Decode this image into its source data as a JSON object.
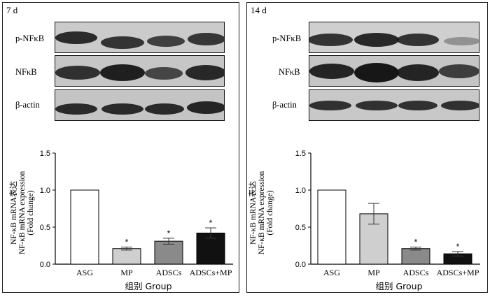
{
  "panels": [
    {
      "day": "7 d",
      "blot_labels": [
        "p-NFκB",
        "NFκB",
        "β-actin"
      ],
      "chart_ylabel": [
        "NF-κB mRNA表达",
        "NF-κB mRNA expression",
        "(Fold change)"
      ],
      "chart_xlabel": "组别  Group"
    },
    {
      "day": "14 d",
      "blot_labels": [
        "p-NFκB",
        "NFκB",
        "β-actin"
      ],
      "chart_ylabel": [
        "NF-κB mRNA表达",
        "NF-κB mRNA expression",
        "(Fold change)"
      ],
      "chart_xlabel": "组别  Group"
    }
  ],
  "chart_data": [
    {
      "type": "bar",
      "categories": [
        "ASG",
        "MP",
        "ADSCs",
        "ADSCs+MP"
      ],
      "values": [
        1.0,
        0.21,
        0.31,
        0.42
      ],
      "errors": [
        0,
        0.02,
        0.04,
        0.07
      ],
      "significance": [
        "",
        "*",
        "*",
        "*"
      ],
      "bar_colors": [
        "#ffffff",
        "#cfcfcf",
        "#8a8a8a",
        "#111111"
      ],
      "xlabel": "组别  Group",
      "ylabel": "NF-κB mRNA表达 NF-κB mRNA expression (Fold change)",
      "ylim": [
        0,
        1.5
      ],
      "yticks": [
        "0.0",
        "0.5",
        "1.0",
        "1.5"
      ]
    },
    {
      "type": "bar",
      "categories": [
        "ASG",
        "MP",
        "ADSCs",
        "ADSCs+MP"
      ],
      "values": [
        1.0,
        0.68,
        0.21,
        0.14
      ],
      "errors": [
        0,
        0.14,
        0.02,
        0.03
      ],
      "significance": [
        "",
        "",
        "*",
        "*"
      ],
      "bar_colors": [
        "#ffffff",
        "#cfcfcf",
        "#8a8a8a",
        "#111111"
      ],
      "xlabel": "组别  Group",
      "ylabel": "NF-κB mRNA表达 NF-κB mRNA expression (Fold change)",
      "ylim": [
        0,
        1.5
      ],
      "yticks": [
        "0.0",
        "0.5",
        "1.0",
        "1.5"
      ]
    }
  ]
}
